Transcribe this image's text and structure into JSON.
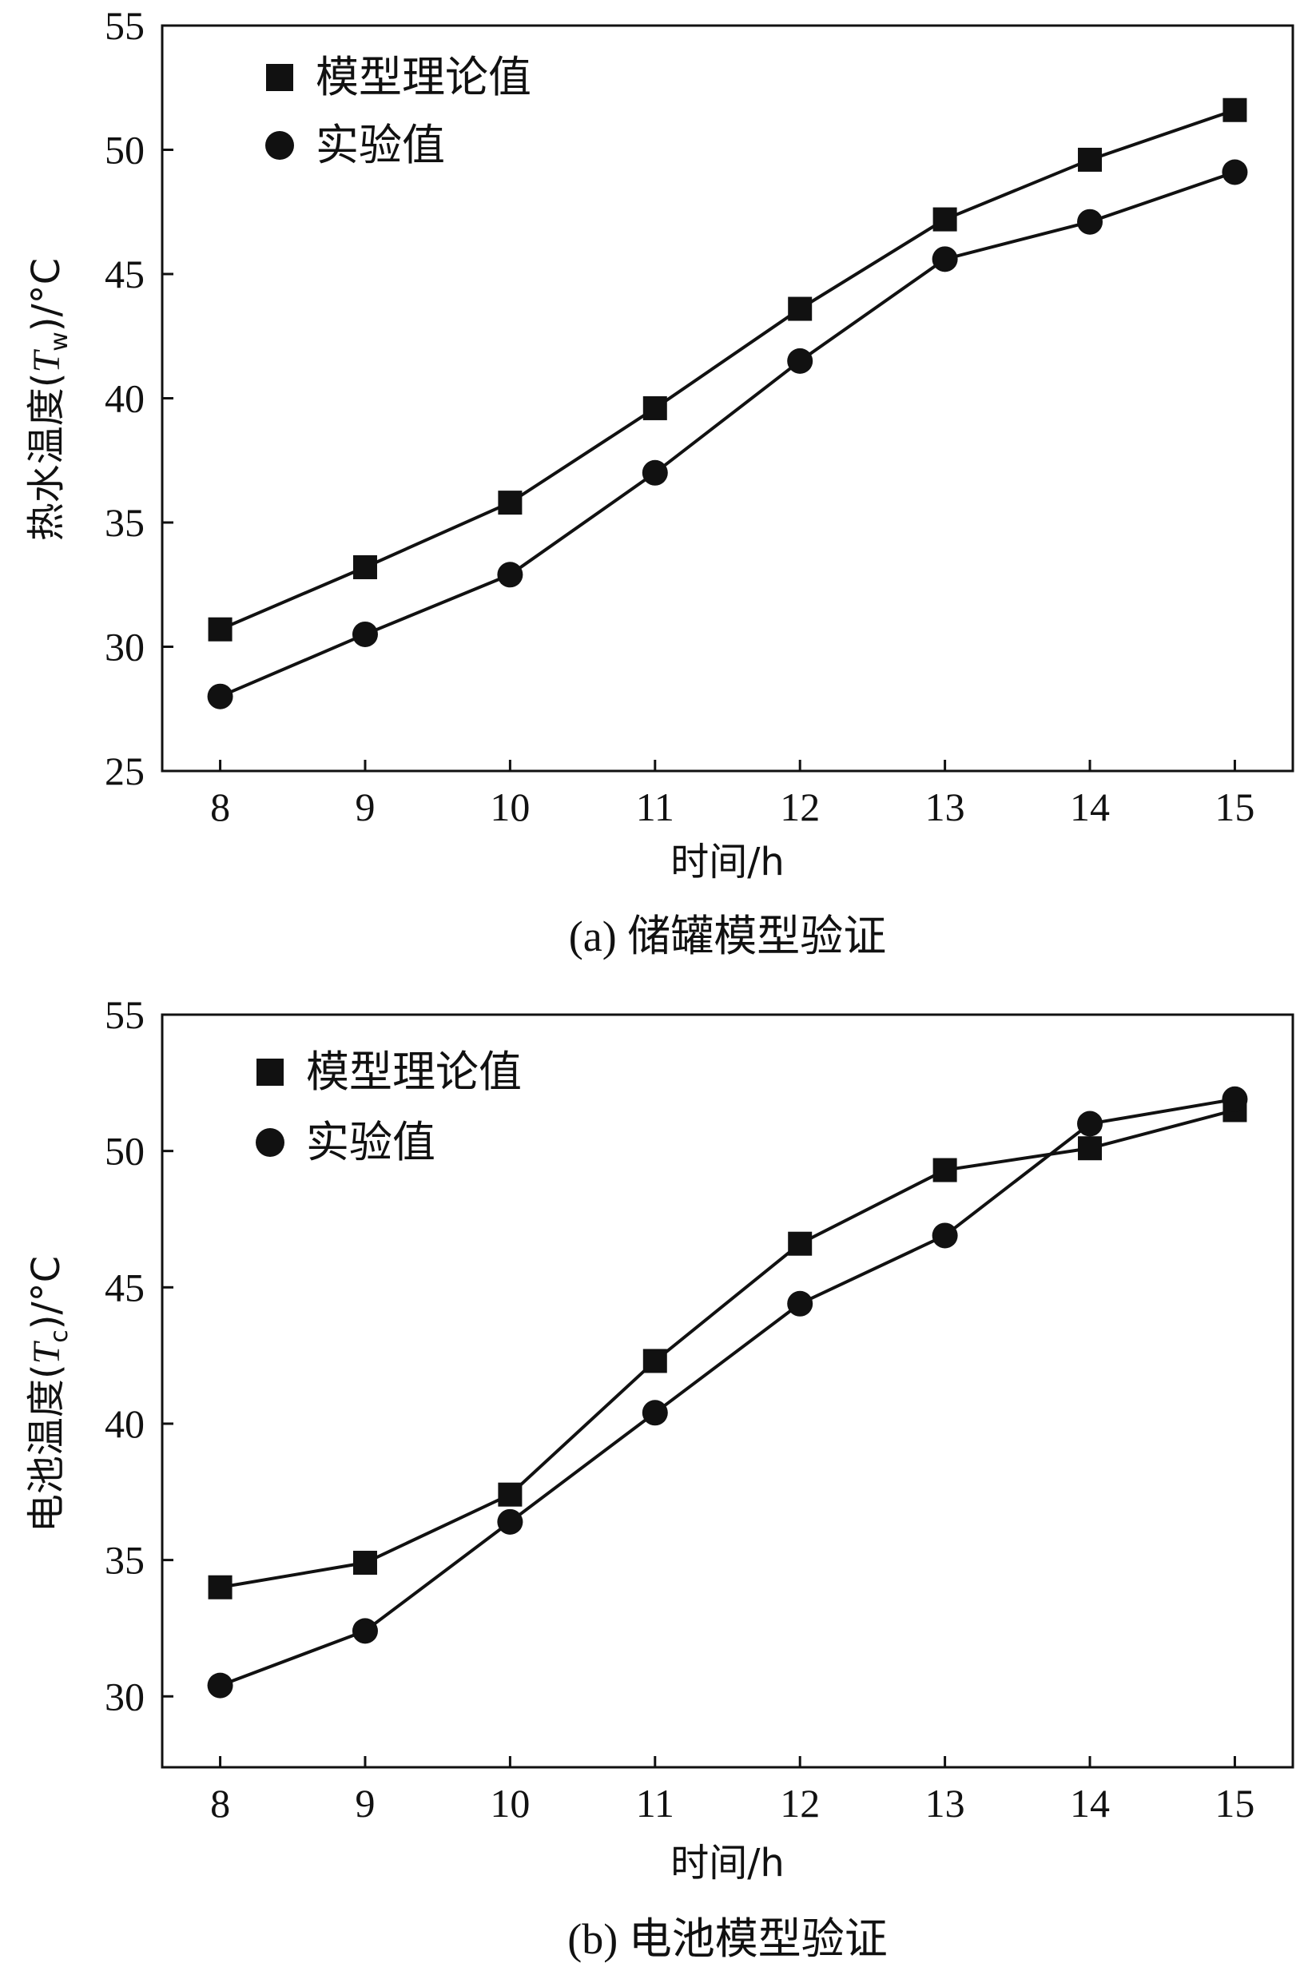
{
  "chart_data": [
    {
      "type": "line",
      "caption": "(a) 储罐模型验证",
      "xlabel": "时间/h",
      "ylabel": "热水温度(T",
      "ylabel_sub": "w",
      "ylabel_tail": ")/°C",
      "x": [
        8,
        9,
        10,
        11,
        12,
        13,
        14,
        15
      ],
      "xlim": [
        7.6,
        15.4
      ],
      "ylim": [
        25,
        55
      ],
      "xticks": [
        8,
        9,
        10,
        11,
        12,
        13,
        14,
        15
      ],
      "yticks": [
        25,
        30,
        35,
        40,
        45,
        50,
        55
      ],
      "grid": false,
      "legend_position": "top-left",
      "series": [
        {
          "name": "模型理论值",
          "marker": "square",
          "values": [
            30.7,
            33.2,
            35.8,
            39.6,
            43.6,
            47.2,
            49.6,
            51.6
          ]
        },
        {
          "name": "实验值",
          "marker": "circle",
          "values": [
            28.0,
            30.5,
            32.9,
            37.0,
            41.5,
            45.6,
            47.1,
            49.1
          ]
        }
      ]
    },
    {
      "type": "line",
      "caption": "(b) 电池模型验证",
      "xlabel": "时间/h",
      "ylabel": "电池温度(T",
      "ylabel_sub": "c",
      "ylabel_tail": ")/°C",
      "x": [
        8,
        9,
        10,
        11,
        12,
        13,
        14,
        15
      ],
      "xlim": [
        7.6,
        15.4
      ],
      "ylim": [
        27.4,
        55
      ],
      "xticks": [
        8,
        9,
        10,
        11,
        12,
        13,
        14,
        15
      ],
      "yticks": [
        30,
        35,
        40,
        45,
        50,
        55
      ],
      "grid": false,
      "legend_position": "top-left",
      "series": [
        {
          "name": "模型理论值",
          "marker": "square",
          "values": [
            34.0,
            34.9,
            37.4,
            42.3,
            46.6,
            49.3,
            50.1,
            51.5
          ]
        },
        {
          "name": "实验值",
          "marker": "circle",
          "values": [
            30.4,
            32.4,
            36.4,
            40.4,
            44.4,
            46.9,
            51.0,
            51.9
          ]
        }
      ]
    }
  ]
}
